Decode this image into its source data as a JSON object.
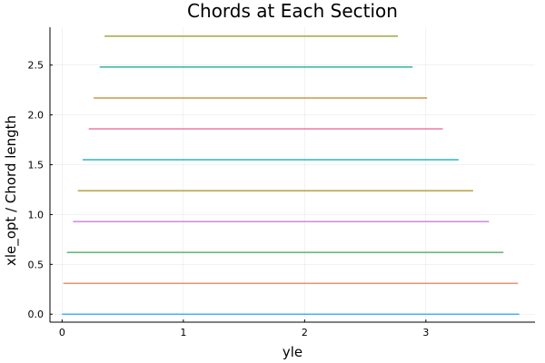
{
  "chart_data": {
    "type": "line",
    "title": "Chords at Each Section",
    "xlabel": "yle",
    "ylabel": "xle_opt / Chord length",
    "xlim": [
      -0.1,
      3.9
    ],
    "ylim": [
      -0.08,
      2.88
    ],
    "xticks": [
      0,
      1,
      2,
      3
    ],
    "yticks": [
      0.0,
      0.5,
      1.0,
      1.5,
      2.0,
      2.5
    ],
    "ytick_labels": [
      "0.0",
      "0.5",
      "1.0",
      "1.5",
      "2.0",
      "2.5"
    ],
    "grid": true,
    "legend": "none",
    "series": [
      {
        "color": "#009AFA",
        "x": [
          0.0,
          3.77
        ],
        "y": [
          0.0,
          0.0
        ]
      },
      {
        "color": "#E36F47",
        "x": [
          0.01,
          3.76
        ],
        "y": [
          0.31,
          0.31
        ]
      },
      {
        "color": "#3EA44E",
        "x": [
          0.04,
          3.64
        ],
        "y": [
          0.62,
          0.62
        ]
      },
      {
        "color": "#C371D2",
        "x": [
          0.09,
          3.52
        ],
        "y": [
          0.93,
          0.93
        ]
      },
      {
        "color": "#AC8D18",
        "x": [
          0.13,
          3.39
        ],
        "y": [
          1.24,
          1.24
        ]
      },
      {
        "color": "#00A9AD",
        "x": [
          0.17,
          3.27
        ],
        "y": [
          1.55,
          1.55
        ]
      },
      {
        "color": "#ED5E93",
        "x": [
          0.22,
          3.14
        ],
        "y": [
          1.86,
          1.86
        ]
      },
      {
        "color": "#C68125",
        "x": [
          0.26,
          3.01
        ],
        "y": [
          2.17,
          2.17
        ]
      },
      {
        "color": "#00A98D",
        "x": [
          0.31,
          2.89
        ],
        "y": [
          2.48,
          2.48
        ]
      },
      {
        "color": "#8E971D",
        "x": [
          0.35,
          2.77
        ],
        "y": [
          2.79,
          2.79
        ]
      }
    ]
  }
}
